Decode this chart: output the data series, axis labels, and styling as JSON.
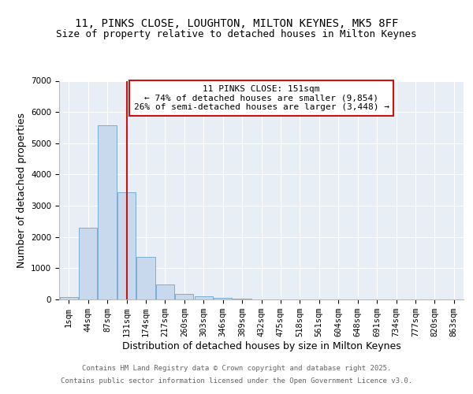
{
  "title_line1": "11, PINKS CLOSE, LOUGHTON, MILTON KEYNES, MK5 8FF",
  "title_line2": "Size of property relative to detached houses in Milton Keynes",
  "xlabel": "Distribution of detached houses by size in Milton Keynes",
  "ylabel": "Number of detached properties",
  "bar_labels": [
    "1sqm",
    "44sqm",
    "87sqm",
    "131sqm",
    "174sqm",
    "217sqm",
    "260sqm",
    "303sqm",
    "346sqm",
    "389sqm",
    "432sqm",
    "475sqm",
    "518sqm",
    "561sqm",
    "604sqm",
    "648sqm",
    "691sqm",
    "734sqm",
    "777sqm",
    "820sqm",
    "863sqm"
  ],
  "bar_values": [
    80,
    2300,
    5580,
    3420,
    1360,
    480,
    170,
    90,
    50,
    25,
    0,
    0,
    0,
    0,
    0,
    0,
    0,
    0,
    0,
    0,
    0
  ],
  "bar_color": "#c8d9ed",
  "bar_edge_color": "#7aaed6",
  "vline_x": 3,
  "annotation_line1": "11 PINKS CLOSE: 151sqm",
  "annotation_line2": "← 74% of detached houses are smaller (9,854)",
  "annotation_line3": "26% of semi-detached houses are larger (3,448) →",
  "annotation_box_facecolor": "#ffffff",
  "annotation_box_edgecolor": "#cc1111",
  "vline_color": "#cc1111",
  "ylim": [
    0,
    7000
  ],
  "yticks": [
    0,
    1000,
    2000,
    3000,
    4000,
    5000,
    6000,
    7000
  ],
  "plot_bg_color": "#e8eef5",
  "fig_bg_color": "#ffffff",
  "grid_color": "#ffffff",
  "footer_line1": "Contains HM Land Registry data © Crown copyright and database right 2025.",
  "footer_line2": "Contains public sector information licensed under the Open Government Licence v3.0.",
  "footer_color": "#666666",
  "title_fontsize": 10,
  "subtitle_fontsize": 9,
  "axis_label_fontsize": 9,
  "tick_fontsize": 7.5,
  "annotation_fontsize": 8,
  "footer_fontsize": 6.5
}
